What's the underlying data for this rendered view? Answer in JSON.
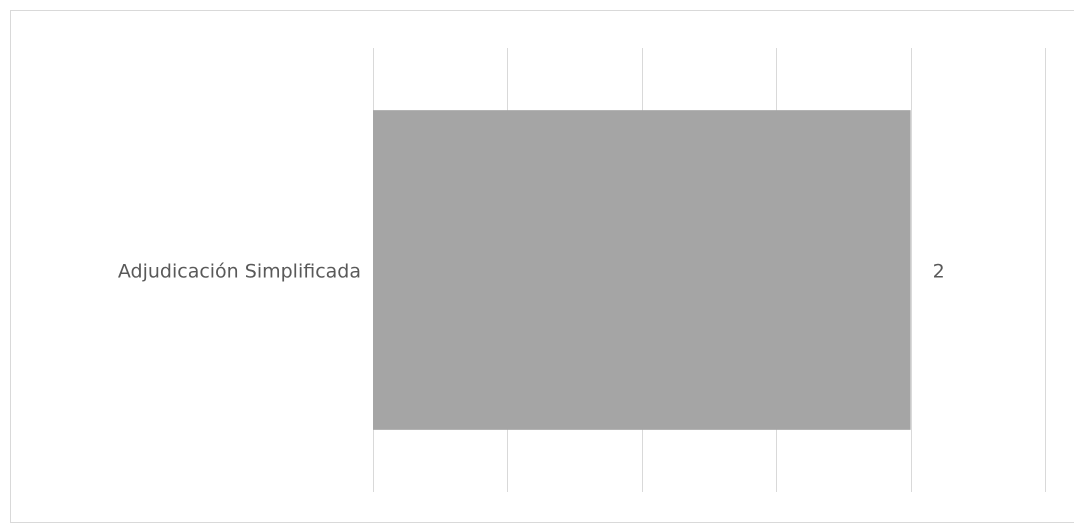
{
  "chart_data": {
    "type": "hbar",
    "categories": [
      "Adjudicación Simplificada"
    ],
    "values": [
      2
    ],
    "color": "#a5a5a5",
    "xlim": [
      0,
      2.5
    ],
    "xticks": [
      0,
      0.5,
      1,
      1.5,
      2,
      2.5
    ],
    "grid": true
  }
}
